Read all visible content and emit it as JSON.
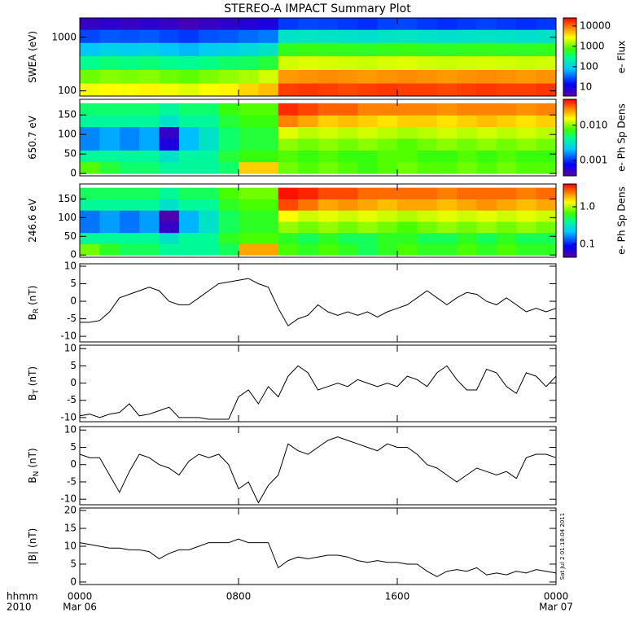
{
  "title": "STEREO-A IMPACT Summary Plot",
  "timestamp": "Sat Jul  2 01:18:04 2011",
  "x_axis": {
    "xlim": [
      0,
      24
    ],
    "xticks": [
      {
        "value": 0,
        "label": "0000"
      },
      {
        "value": 8,
        "label": "0800"
      },
      {
        "value": 16,
        "label": "1600"
      },
      {
        "value": 24,
        "label": "0000"
      }
    ],
    "start_date": "Mar 06",
    "end_date": "Mar 07",
    "time_format": "hhmm",
    "year": "2010"
  },
  "time_edges": [
    0,
    1,
    2,
    3,
    4,
    5,
    6,
    7,
    8,
    9,
    10,
    11,
    12,
    13,
    14,
    15,
    16,
    17,
    18,
    19,
    20,
    21,
    22,
    23,
    24
  ],
  "chart_data": [
    {
      "type": "heatmap",
      "ylabel": "SWEA (eV)",
      "colorbar_label": "e- Flux",
      "log_y": true,
      "log_c": true,
      "colormap": "rainbow",
      "ylim": [
        80,
        2300
      ],
      "yticks": [
        100,
        1000
      ],
      "y_edges": [
        80,
        140,
        250,
        450,
        800,
        1400,
        2300
      ],
      "clim": [
        3.6,
        25000
      ],
      "cticks": [
        10,
        100,
        1000,
        10000
      ],
      "values": [
        [
          2500,
          2800,
          2600,
          3000,
          2500,
          2200,
          2600,
          3000,
          4000,
          5000,
          15000,
          16000,
          15000,
          14000,
          15000,
          16000,
          15000,
          15000,
          14000,
          15000,
          16000,
          15000,
          15000,
          16000
        ],
        [
          1000,
          1200,
          1100,
          1200,
          1000,
          900,
          1100,
          1300,
          1500,
          2000,
          7000,
          7500,
          8000,
          7500,
          7000,
          7500,
          8000,
          7500,
          7000,
          7500,
          8000,
          7500,
          7000,
          7500
        ],
        [
          300,
          350,
          320,
          350,
          300,
          280,
          320,
          380,
          400,
          500,
          2000,
          2200,
          2100,
          2000,
          1900,
          2100,
          2200,
          2000,
          1900,
          2000,
          2100,
          2000,
          1900,
          2000
        ],
        [
          80,
          100,
          90,
          100,
          80,
          70,
          90,
          100,
          120,
          150,
          600,
          650,
          620,
          600,
          580,
          620,
          650,
          600,
          580,
          600,
          620,
          600,
          580,
          600
        ],
        [
          25,
          30,
          28,
          30,
          25,
          22,
          28,
          30,
          35,
          40,
          150,
          160,
          155,
          150,
          140,
          155,
          160,
          150,
          140,
          150,
          155,
          150,
          140,
          150
        ],
        [
          6,
          7,
          6,
          7,
          6,
          5,
          6,
          7,
          8,
          9,
          22,
          25,
          24,
          22,
          20,
          24,
          25,
          22,
          20,
          22,
          24,
          22,
          20,
          22
        ]
      ]
    },
    {
      "type": "heatmap",
      "ylabel": "650.7 eV",
      "colorbar_label": "e- Ph Sp Dens",
      "log_y": false,
      "log_c": true,
      "colormap": "rainbow",
      "ylim": [
        -6,
        190
      ],
      "yticks": [
        0,
        50,
        100,
        150
      ],
      "y_edges": [
        0,
        30,
        60,
        90,
        120,
        150,
        180
      ],
      "clim": [
        0.00036,
        0.055
      ],
      "cticks": [
        0.001,
        {
          "value": 0.01,
          "label": "0.010"
        }
      ],
      "values": [
        [
          0.008,
          0.006,
          0.005,
          0.005,
          0.004,
          0.004,
          0.004,
          0.005,
          0.02,
          0.02,
          0.009,
          0.008,
          0.009,
          0.008,
          0.007,
          0.008,
          0.009,
          0.008,
          0.008,
          0.009,
          0.008,
          0.009,
          0.008,
          0.008
        ],
        [
          0.004,
          0.004,
          0.004,
          0.004,
          0.003,
          0.004,
          0.004,
          0.006,
          0.007,
          0.007,
          0.008,
          0.007,
          0.008,
          0.007,
          0.007,
          0.008,
          0.008,
          0.007,
          0.007,
          0.008,
          0.007,
          0.008,
          0.007,
          0.007
        ],
        [
          0.0015,
          0.0018,
          0.0015,
          0.0018,
          0.0006,
          0.002,
          0.003,
          0.005,
          0.006,
          0.006,
          0.01,
          0.009,
          0.01,
          0.009,
          0.01,
          0.009,
          0.008,
          0.009,
          0.01,
          0.009,
          0.01,
          0.009,
          0.01,
          0.009
        ],
        [
          0.0015,
          0.0018,
          0.0015,
          0.0018,
          0.0005,
          0.002,
          0.003,
          0.005,
          0.006,
          0.006,
          0.014,
          0.012,
          0.013,
          0.012,
          0.013,
          0.012,
          0.011,
          0.012,
          0.013,
          0.012,
          0.013,
          0.012,
          0.013,
          0.012
        ],
        [
          0.004,
          0.004,
          0.004,
          0.004,
          0.003,
          0.004,
          0.004,
          0.006,
          0.007,
          0.007,
          0.03,
          0.025,
          0.02,
          0.022,
          0.02,
          0.018,
          0.02,
          0.02,
          0.018,
          0.02,
          0.022,
          0.02,
          0.018,
          0.02
        ],
        [
          0.005,
          0.005,
          0.005,
          0.005,
          0.004,
          0.005,
          0.005,
          0.007,
          0.008,
          0.008,
          0.045,
          0.04,
          0.035,
          0.035,
          0.03,
          0.03,
          0.03,
          0.03,
          0.028,
          0.03,
          0.03,
          0.03,
          0.028,
          0.03
        ]
      ]
    },
    {
      "type": "heatmap",
      "ylabel": "246.6 eV",
      "colorbar_label": "e- Ph Sp Dens",
      "log_y": false,
      "log_c": true,
      "colormap": "rainbow",
      "ylim": [
        -6,
        190
      ],
      "yticks": [
        0,
        50,
        100,
        150
      ],
      "y_edges": [
        0,
        30,
        60,
        90,
        120,
        150,
        180
      ],
      "clim": [
        0.045,
        4.06
      ],
      "cticks": [
        0.1,
        {
          "value": 1,
          "label": "1.0"
        }
      ],
      "values": [
        [
          0.8,
          0.6,
          0.5,
          0.5,
          0.4,
          0.4,
          0.4,
          0.5,
          2,
          2,
          0.7,
          0.6,
          0.7,
          0.6,
          0.5,
          0.6,
          0.7,
          0.6,
          0.6,
          0.7,
          0.6,
          0.7,
          0.6,
          0.6
        ],
        [
          0.4,
          0.4,
          0.4,
          0.4,
          0.3,
          0.4,
          0.4,
          0.6,
          0.7,
          0.7,
          0.6,
          0.5,
          0.6,
          0.5,
          0.5,
          0.6,
          0.6,
          0.5,
          0.5,
          0.6,
          0.5,
          0.6,
          0.5,
          0.5
        ],
        [
          0.15,
          0.18,
          0.15,
          0.18,
          0.06,
          0.2,
          0.3,
          0.5,
          0.6,
          0.6,
          0.9,
          0.8,
          0.9,
          0.8,
          0.9,
          0.8,
          0.7,
          0.8,
          0.9,
          0.8,
          0.9,
          0.8,
          0.9,
          0.8
        ],
        [
          0.15,
          0.18,
          0.15,
          0.18,
          0.05,
          0.2,
          0.3,
          0.5,
          0.6,
          0.6,
          1.3,
          1.1,
          1.2,
          1.1,
          1.2,
          1.1,
          1,
          1.1,
          1.2,
          1.1,
          1.2,
          1.1,
          1.2,
          1.1
        ],
        [
          0.4,
          0.4,
          0.4,
          0.4,
          0.3,
          0.4,
          0.4,
          0.6,
          0.7,
          0.7,
          3,
          2.5,
          2,
          2.2,
          2,
          1.8,
          2,
          2,
          1.8,
          2,
          2.2,
          2,
          1.8,
          2
        ],
        [
          0.5,
          0.5,
          0.5,
          0.5,
          0.4,
          0.5,
          0.5,
          0.7,
          0.8,
          0.8,
          3.8,
          3.5,
          3,
          3,
          2.6,
          2.6,
          2.6,
          2.6,
          2.4,
          2.6,
          2.6,
          2.6,
          2.4,
          2.6
        ]
      ]
    },
    {
      "type": "line",
      "ylabel": "B",
      "ylabel_sub": "R",
      "ylabel_unit": "(nT)",
      "color": "#000000",
      "ylim": [
        -11.6,
        10.7
      ],
      "yticks": [
        -10,
        -5,
        0,
        5,
        10
      ],
      "x": [
        0,
        0.5,
        1,
        1.5,
        2,
        2.5,
        3,
        3.5,
        4,
        4.5,
        5,
        5.5,
        6,
        6.5,
        7,
        7.5,
        8,
        8.5,
        9,
        9.5,
        10,
        10.5,
        11,
        11.5,
        12,
        12.5,
        13,
        13.5,
        14,
        14.5,
        15,
        15.5,
        16,
        16.5,
        17,
        17.5,
        18,
        18.5,
        19,
        19.5,
        20,
        20.5,
        21,
        21.5,
        22,
        22.5,
        23,
        23.5,
        24
      ],
      "values": [
        -6,
        -6,
        -5.5,
        -3,
        1,
        2,
        3,
        4,
        3,
        0,
        -1,
        -1,
        1,
        3,
        5,
        5.5,
        6,
        6.5,
        5,
        4,
        -2,
        -7,
        -5,
        -4,
        -1,
        -3,
        -4,
        -3,
        -4,
        -3,
        -4.5,
        -3,
        -2,
        -1,
        1,
        3,
        1,
        -1,
        1,
        2.5,
        2,
        0,
        -1,
        1,
        -1,
        -3,
        -2,
        -3,
        -2
      ]
    },
    {
      "type": "line",
      "ylabel": "B",
      "ylabel_sub": "T",
      "ylabel_unit": "(nT)",
      "color": "#000000",
      "ylim": [
        -11.2,
        11
      ],
      "yticks": [
        -10,
        -5,
        0,
        5,
        10
      ],
      "x": [
        0,
        0.5,
        1,
        1.5,
        2,
        2.5,
        3,
        3.5,
        4,
        4.5,
        5,
        5.5,
        6,
        6.5,
        7,
        7.5,
        8,
        8.5,
        9,
        9.5,
        10,
        10.5,
        11,
        11.5,
        12,
        12.5,
        13,
        13.5,
        14,
        14.5,
        15,
        15.5,
        16,
        16.5,
        17,
        17.5,
        18,
        18.5,
        19,
        19.5,
        20,
        20.5,
        21,
        21.5,
        22,
        22.5,
        23,
        23.5,
        24
      ],
      "values": [
        -9.5,
        -9,
        -10,
        -9,
        -8.5,
        -6,
        -9.5,
        -9,
        -8,
        -7,
        -10,
        -10,
        -10,
        -10.5,
        -10.5,
        -10.5,
        -4,
        -2,
        -6,
        -1,
        -4,
        2,
        5,
        3,
        -2,
        -1,
        0,
        -1,
        1,
        0,
        -1,
        0,
        -1,
        2,
        1,
        -1,
        3,
        5,
        1,
        -2,
        -2,
        4,
        3,
        -1,
        -3,
        3,
        2,
        -1,
        2
      ]
    },
    {
      "type": "line",
      "ylabel": "B",
      "ylabel_sub": "N",
      "ylabel_unit": "(nT)",
      "color": "#000000",
      "ylim": [
        -11.6,
        11
      ],
      "yticks": [
        -10,
        -5,
        0,
        5,
        10
      ],
      "x": [
        0,
        0.5,
        1,
        1.5,
        2,
        2.5,
        3,
        3.5,
        4,
        4.5,
        5,
        5.5,
        6,
        6.5,
        7,
        7.5,
        8,
        8.5,
        9,
        9.5,
        10,
        10.5,
        11,
        11.5,
        12,
        12.5,
        13,
        13.5,
        14,
        14.5,
        15,
        15.5,
        16,
        16.5,
        17,
        17.5,
        18,
        18.5,
        19,
        19.5,
        20,
        20.5,
        21,
        21.5,
        22,
        22.5,
        23,
        23.5,
        24
      ],
      "values": [
        3,
        2,
        2,
        -3,
        -8,
        -2,
        3,
        2,
        0,
        -1,
        -3,
        1,
        3,
        2,
        3,
        0,
        -7,
        -5,
        -11,
        -6,
        -3,
        6,
        4,
        3,
        5,
        7,
        8,
        7,
        6,
        5,
        4,
        6,
        5,
        5,
        3,
        0,
        -1,
        -3,
        -5,
        -3,
        -1,
        -2,
        -3,
        -2,
        -4,
        2,
        3,
        3,
        2
      ]
    },
    {
      "type": "line",
      "ylabel": "|B|",
      "ylabel_unit": "(nT)",
      "color": "#000000",
      "ylim": [
        -0.7,
        20.7
      ],
      "yticks": [
        0,
        5,
        10,
        15,
        20
      ],
      "x": [
        0,
        0.5,
        1,
        1.5,
        2,
        2.5,
        3,
        3.5,
        4,
        4.5,
        5,
        5.5,
        6,
        6.5,
        7,
        7.5,
        8,
        8.5,
        9,
        9.5,
        10,
        10.5,
        11,
        11.5,
        12,
        12.5,
        13,
        13.5,
        14,
        14.5,
        15,
        15.5,
        16,
        16.5,
        17,
        17.5,
        18,
        18.5,
        19,
        19.5,
        20,
        20.5,
        21,
        21.5,
        22,
        22.5,
        23,
        23.5,
        24
      ],
      "values": [
        11,
        10.5,
        10,
        9.5,
        9.5,
        9,
        9,
        8.5,
        6.5,
        8,
        9,
        9,
        10,
        11,
        11,
        11,
        12,
        11,
        11,
        11,
        4,
        6,
        7,
        6.5,
        7,
        7.5,
        7.5,
        7,
        6,
        5.5,
        6,
        5.5,
        5.5,
        5,
        5,
        3,
        1.5,
        3,
        3.5,
        3,
        4,
        2,
        2.5,
        2,
        3,
        2.5,
        3.5,
        3,
        2.5
      ]
    }
  ]
}
